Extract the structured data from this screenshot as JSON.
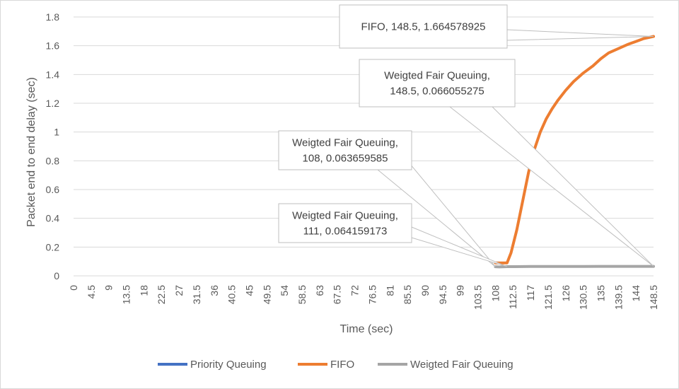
{
  "chart_data": {
    "type": "line",
    "title": "",
    "xlabel": "Time (sec)",
    "ylabel": "Packet end to end delay (sec)",
    "ylim": [
      0,
      1.8
    ],
    "yticks": [
      "0",
      "0.2",
      "0.4",
      "0.6",
      "0.8",
      "1",
      "1.2",
      "1.4",
      "1.6",
      "1.8"
    ],
    "xticks": [
      "0",
      "4.5",
      "9",
      "13.5",
      "18",
      "22.5",
      "27",
      "31.5",
      "36",
      "40.5",
      "45",
      "49.5",
      "54",
      "58.5",
      "63",
      "67.5",
      "72",
      "76.5",
      "81",
      "85.5",
      "90",
      "94.5",
      "99",
      "103.5",
      "108",
      "112.5",
      "117",
      "121.5",
      "126",
      "130.5",
      "135",
      "139.5",
      "144",
      "148.5"
    ],
    "xlim": [
      0,
      148.5
    ],
    "grid": "horizontal",
    "legend": "bottom",
    "series": [
      {
        "name": "Priority Queuing",
        "color": "#4472c4",
        "x": [],
        "y": []
      },
      {
        "name": "FIFO",
        "color": "#ed7d31",
        "x": [
          108,
          109.5,
          111,
          112,
          113.5,
          115,
          116.5,
          118,
          119.5,
          121,
          122.5,
          124,
          126,
          128,
          130.5,
          133,
          135,
          137,
          139.5,
          142,
          144,
          146,
          148.5
        ],
        "y": [
          0.09,
          0.09,
          0.09,
          0.16,
          0.32,
          0.52,
          0.72,
          0.88,
          1.0,
          1.09,
          1.16,
          1.22,
          1.29,
          1.35,
          1.41,
          1.46,
          1.51,
          1.55,
          1.58,
          1.61,
          1.63,
          1.65,
          1.664578925
        ]
      },
      {
        "name": "Weigted Fair Queuing",
        "color": "#a5a5a5",
        "x": [
          108,
          109,
          111,
          113,
          117,
          121.5,
          126,
          130.5,
          135,
          139.5,
          144,
          148.5
        ],
        "y": [
          0.063659585,
          0.062,
          0.064159173,
          0.064,
          0.065,
          0.065,
          0.065,
          0.065,
          0.066,
          0.066,
          0.066,
          0.066055275
        ]
      }
    ],
    "annotations": [
      {
        "series": 1,
        "x": 148.5,
        "y": 1.664578925,
        "lines": [
          "FIFO, 148.5, 1.664578925"
        ]
      },
      {
        "series": 2,
        "x": 148.5,
        "y": 0.066055275,
        "lines": [
          "Weigted Fair Queuing,",
          "148.5, 0.066055275"
        ]
      },
      {
        "series": 2,
        "x": 108,
        "y": 0.063659585,
        "lines": [
          "Weigted Fair Queuing,",
          "108, 0.063659585"
        ]
      },
      {
        "series": 2,
        "x": 111,
        "y": 0.064159173,
        "lines": [
          "Weigted Fair Queuing,",
          "111, 0.064159173"
        ]
      }
    ]
  }
}
